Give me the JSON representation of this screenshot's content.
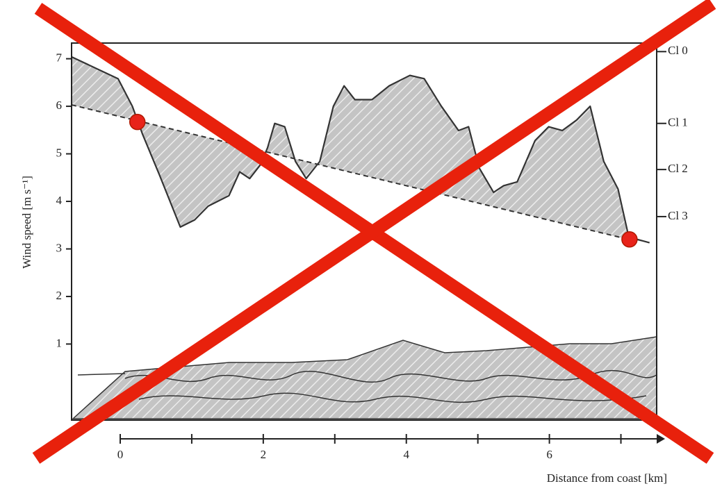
{
  "chart_data": {
    "type": "line",
    "y_label": "Wind speed [m s⁻¹]",
    "x_label": "Distance from  coast [km]",
    "xlim": [
      -0.68,
      7.5
    ],
    "ylim": [
      -0.6,
      7.33
    ],
    "y2lim": [
      -0.6,
      7.33
    ],
    "xticks": [
      0,
      2,
      4,
      6
    ],
    "x_minor_ticks": [
      1,
      3,
      5,
      7
    ],
    "yticks": [
      1,
      2,
      3,
      4,
      5,
      6,
      7
    ],
    "y2ticks": [
      {
        "value": 7.15,
        "label": "Cl 0"
      },
      {
        "value": 5.64,
        "label": "Cl 1"
      },
      {
        "value": 4.67,
        "label": "Cl 2"
      },
      {
        "value": 3.68,
        "label": "Cl 3"
      }
    ],
    "series": [
      {
        "color": "#333333",
        "style": "solid",
        "x": [
          -0.68,
          -0.03,
          0.17,
          0.31,
          0.55,
          0.84,
          1.04,
          1.23,
          1.52,
          1.67,
          1.81,
          1.96,
          2.06,
          2.16,
          2.3,
          2.45,
          2.6,
          2.79,
          2.98,
          3.13,
          3.28,
          3.52,
          3.76,
          4.05,
          4.25,
          4.49,
          4.73,
          4.87,
          5.02,
          5.22,
          5.36,
          5.55,
          5.8,
          5.99,
          6.18,
          6.38,
          6.57,
          6.76,
          6.96,
          7.11,
          7.4
        ],
        "values": [
          7.04,
          6.58,
          6.0,
          5.42,
          4.55,
          3.46,
          3.61,
          3.9,
          4.12,
          4.62,
          4.48,
          4.77,
          5.13,
          5.64,
          5.57,
          4.84,
          4.48,
          4.84,
          6.0,
          6.43,
          6.14,
          6.14,
          6.43,
          6.65,
          6.58,
          6.0,
          5.49,
          5.57,
          4.7,
          4.19,
          4.33,
          4.41,
          5.28,
          5.57,
          5.49,
          5.71,
          6.0,
          4.84,
          4.26,
          3.25,
          3.13
        ]
      },
      {
        "color": "#333333",
        "style": "dashed",
        "x": [
          -0.68,
          7.11
        ],
        "values": [
          6.03,
          3.2
        ]
      }
    ],
    "markers": {
      "color": "#e8231a",
      "x": [
        0.24,
        7.12
      ],
      "values": [
        5.67,
        3.2
      ]
    }
  }
}
